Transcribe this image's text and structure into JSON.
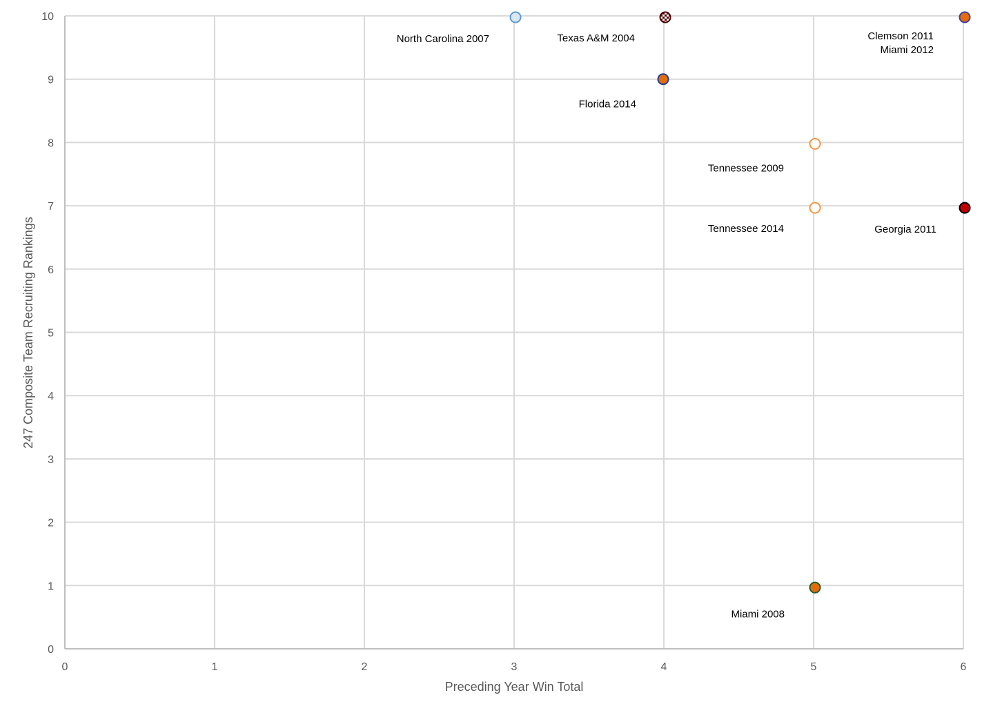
{
  "chart_data": {
    "type": "scatter",
    "xlabel": "Preceding Year Win Total",
    "ylabel": "247 Composite Team Recruiting Rankings",
    "xlim": [
      0,
      6
    ],
    "ylim": [
      0,
      10
    ],
    "x_ticks": [
      "0",
      "1",
      "2",
      "3",
      "4",
      "5",
      "6"
    ],
    "y_ticks": [
      "0",
      "1",
      "2",
      "3",
      "4",
      "5",
      "6",
      "7",
      "8",
      "9",
      "10"
    ],
    "grid": true,
    "points": [
      {
        "x": 3,
        "y": 10,
        "fill": "#dce6f2",
        "stroke": "#5b9bd5",
        "pattern": ""
      },
      {
        "x": 4,
        "y": 10,
        "fill": "#ffffff",
        "stroke": "#500000",
        "pattern": "checker"
      },
      {
        "x": 6,
        "y": 10,
        "fill": "#e46c0a",
        "stroke": "#3f3f9f",
        "pattern": ""
      },
      {
        "x": 4,
        "y": 9,
        "fill": "#e46c0a",
        "stroke": "#1f3f9f",
        "pattern": ""
      },
      {
        "x": 5,
        "y": 8,
        "fill": "#ffffff",
        "stroke": "#f79646",
        "pattern": ""
      },
      {
        "x": 5,
        "y": 7,
        "fill": "#ffffff",
        "stroke": "#f79646",
        "pattern": ""
      },
      {
        "x": 6,
        "y": 7,
        "fill": "#c00000",
        "stroke": "#000000",
        "pattern": ""
      },
      {
        "x": 5,
        "y": 1,
        "fill": "#e46c0a",
        "stroke": "#1e5e2e",
        "pattern": ""
      }
    ],
    "annotations": [
      {
        "text": "North Carolina 2007",
        "x": 3,
        "y": 10
      },
      {
        "text": "Texas A&M 2004",
        "x": 4,
        "y": 10
      },
      {
        "text": "Clemson 2011",
        "x": 6,
        "y": 10
      },
      {
        "text": "Miami 2012",
        "x": 6,
        "y": 10
      },
      {
        "text": "Florida 2014",
        "x": 4,
        "y": 9
      },
      {
        "text": "Tennessee 2009",
        "x": 5,
        "y": 8
      },
      {
        "text": "Tennessee 2014",
        "x": 5,
        "y": 7
      },
      {
        "text": "Georgia 2011",
        "x": 6,
        "y": 7
      },
      {
        "text": "Miami 2008",
        "x": 5,
        "y": 1
      }
    ]
  }
}
